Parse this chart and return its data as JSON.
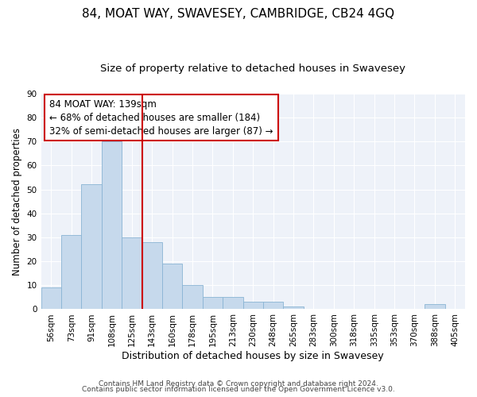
{
  "title": "84, MOAT WAY, SWAVESEY, CAMBRIDGE, CB24 4GQ",
  "subtitle": "Size of property relative to detached houses in Swavesey",
  "xlabel": "Distribution of detached houses by size in Swavesey",
  "ylabel": "Number of detached properties",
  "bar_labels": [
    "56sqm",
    "73sqm",
    "91sqm",
    "108sqm",
    "125sqm",
    "143sqm",
    "160sqm",
    "178sqm",
    "195sqm",
    "213sqm",
    "230sqm",
    "248sqm",
    "265sqm",
    "283sqm",
    "300sqm",
    "318sqm",
    "335sqm",
    "353sqm",
    "370sqm",
    "388sqm",
    "405sqm"
  ],
  "bar_values": [
    9,
    31,
    52,
    70,
    30,
    28,
    19,
    10,
    5,
    5,
    3,
    3,
    1,
    0,
    0,
    0,
    0,
    0,
    0,
    2,
    0
  ],
  "bar_color": "#c6d9ec",
  "bar_edge_color": "#8ab4d4",
  "vline_color": "#cc0000",
  "annotation_text": "84 MOAT WAY: 139sqm\n← 68% of detached houses are smaller (184)\n32% of semi-detached houses are larger (87) →",
  "annotation_box_edge": "#cc0000",
  "ylim": [
    0,
    90
  ],
  "yticks": [
    0,
    10,
    20,
    30,
    40,
    50,
    60,
    70,
    80,
    90
  ],
  "background_color": "#ffffff",
  "plot_bg_color": "#eef2f9",
  "grid_color": "#ffffff",
  "footer_line1": "Contains HM Land Registry data © Crown copyright and database right 2024.",
  "footer_line2": "Contains public sector information licensed under the Open Government Licence v3.0.",
  "title_fontsize": 11,
  "subtitle_fontsize": 9.5,
  "xlabel_fontsize": 9,
  "ylabel_fontsize": 8.5,
  "tick_fontsize": 7.5,
  "annotation_fontsize": 8.5,
  "footer_fontsize": 6.5
}
